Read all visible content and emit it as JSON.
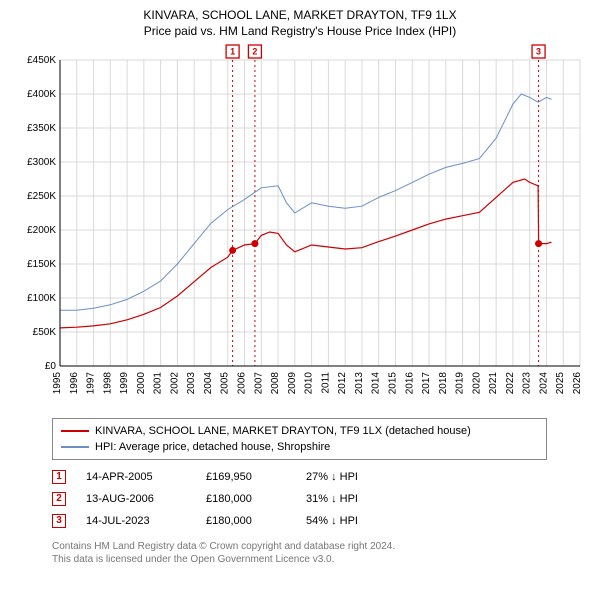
{
  "title": {
    "line1": "KINVARA, SCHOOL LANE, MARKET DRAYTON, TF9 1LX",
    "line2": "Price paid vs. HM Land Registry's House Price Index (HPI)"
  },
  "chart": {
    "type": "line",
    "background_color": "#ffffff",
    "grid_color": "#d9d9d9",
    "axis_color": "#000000",
    "x": {
      "min": 1995,
      "max": 2026,
      "ticks": [
        1995,
        1996,
        1997,
        1998,
        1999,
        2000,
        2001,
        2002,
        2003,
        2004,
        2005,
        2006,
        2007,
        2008,
        2009,
        2010,
        2011,
        2012,
        2013,
        2014,
        2015,
        2016,
        2017,
        2018,
        2019,
        2020,
        2021,
        2022,
        2023,
        2024,
        2025,
        2026
      ],
      "tick_labels": [
        "1995",
        "1996",
        "1997",
        "1998",
        "1999",
        "2000",
        "2001",
        "2002",
        "2003",
        "2004",
        "2005",
        "2006",
        "2007",
        "2008",
        "2009",
        "2010",
        "2011",
        "2012",
        "2013",
        "2014",
        "2015",
        "2016",
        "2017",
        "2018",
        "2019",
        "2020",
        "2021",
        "2022",
        "2023",
        "2024",
        "2025",
        "2026"
      ],
      "label_fontsize": 10,
      "label_rotation": -90
    },
    "y": {
      "min": 0,
      "max": 450000,
      "ticks": [
        0,
        50000,
        100000,
        150000,
        200000,
        250000,
        300000,
        350000,
        400000,
        450000
      ],
      "tick_labels": [
        "£0",
        "£50K",
        "£100K",
        "£150K",
        "£200K",
        "£250K",
        "£300K",
        "£350K",
        "£400K",
        "£450K"
      ],
      "label_fontsize": 10
    },
    "series": [
      {
        "name": "hpi",
        "label": "HPI: Average price, detached house, Shropshire",
        "color": "#6a8fc7",
        "line_width": 1,
        "points": [
          [
            1995.0,
            82000
          ],
          [
            1996.0,
            82000
          ],
          [
            1997.0,
            85000
          ],
          [
            1998.0,
            90000
          ],
          [
            1999.0,
            98000
          ],
          [
            2000.0,
            110000
          ],
          [
            2001.0,
            125000
          ],
          [
            2002.0,
            150000
          ],
          [
            2003.0,
            180000
          ],
          [
            2004.0,
            210000
          ],
          [
            2005.0,
            230000
          ],
          [
            2006.0,
            245000
          ],
          [
            2007.0,
            262000
          ],
          [
            2008.0,
            265000
          ],
          [
            2008.5,
            240000
          ],
          [
            2009.0,
            225000
          ],
          [
            2010.0,
            240000
          ],
          [
            2011.0,
            235000
          ],
          [
            2012.0,
            232000
          ],
          [
            2013.0,
            235000
          ],
          [
            2014.0,
            248000
          ],
          [
            2015.0,
            258000
          ],
          [
            2016.0,
            270000
          ],
          [
            2017.0,
            282000
          ],
          [
            2018.0,
            292000
          ],
          [
            2019.0,
            298000
          ],
          [
            2020.0,
            305000
          ],
          [
            2021.0,
            335000
          ],
          [
            2022.0,
            385000
          ],
          [
            2022.5,
            400000
          ],
          [
            2023.0,
            395000
          ],
          [
            2023.5,
            388000
          ],
          [
            2024.0,
            395000
          ],
          [
            2024.3,
            392000
          ]
        ]
      },
      {
        "name": "property",
        "label": "KINVARA, SCHOOL LANE, MARKET DRAYTON, TF9 1LX (detached house)",
        "color": "#cc0000",
        "line_width": 1.2,
        "points": [
          [
            1995.0,
            56000
          ],
          [
            1996.0,
            57000
          ],
          [
            1997.0,
            59000
          ],
          [
            1998.0,
            62000
          ],
          [
            1999.0,
            68000
          ],
          [
            2000.0,
            76000
          ],
          [
            2001.0,
            86000
          ],
          [
            2002.0,
            103000
          ],
          [
            2003.0,
            124000
          ],
          [
            2004.0,
            145000
          ],
          [
            2005.0,
            160000
          ],
          [
            2005.29,
            170000
          ],
          [
            2006.0,
            178000
          ],
          [
            2006.62,
            180000
          ],
          [
            2007.0,
            192000
          ],
          [
            2007.5,
            197000
          ],
          [
            2008.0,
            195000
          ],
          [
            2008.5,
            178000
          ],
          [
            2009.0,
            168000
          ],
          [
            2010.0,
            178000
          ],
          [
            2011.0,
            175000
          ],
          [
            2012.0,
            172000
          ],
          [
            2013.0,
            174000
          ],
          [
            2014.0,
            183000
          ],
          [
            2015.0,
            191000
          ],
          [
            2016.0,
            200000
          ],
          [
            2017.0,
            209000
          ],
          [
            2018.0,
            216000
          ],
          [
            2019.0,
            221000
          ],
          [
            2020.0,
            226000
          ],
          [
            2021.0,
            248000
          ],
          [
            2022.0,
            270000
          ],
          [
            2022.7,
            275000
          ],
          [
            2023.0,
            270000
          ],
          [
            2023.5,
            265000
          ],
          [
            2023.53,
            180000
          ],
          [
            2024.0,
            180000
          ],
          [
            2024.3,
            182000
          ]
        ]
      }
    ],
    "sale_markers": [
      {
        "num": "1",
        "x": 2005.29,
        "y": 169950,
        "line_color": "#cc0000"
      },
      {
        "num": "2",
        "x": 2006.62,
        "y": 180000,
        "line_color": "#cc0000"
      },
      {
        "num": "3",
        "x": 2023.53,
        "y": 180000,
        "line_color": "#cc0000"
      }
    ],
    "marker_dash": "2,3",
    "marker_box_size": 13
  },
  "legend": {
    "items": [
      {
        "color": "#cc0000",
        "label": "KINVARA, SCHOOL LANE, MARKET DRAYTON, TF9 1LX (detached house)"
      },
      {
        "color": "#6a8fc7",
        "label": "HPI: Average price, detached house, Shropshire"
      }
    ]
  },
  "sales_table": {
    "rows": [
      {
        "num": "1",
        "date": "14-APR-2005",
        "price": "£169,950",
        "diff": "27% ↓ HPI"
      },
      {
        "num": "2",
        "date": "13-AUG-2006",
        "price": "£180,000",
        "diff": "31% ↓ HPI"
      },
      {
        "num": "3",
        "date": "14-JUL-2023",
        "price": "£180,000",
        "diff": "54% ↓ HPI"
      }
    ]
  },
  "footnote": {
    "line1": "Contains HM Land Registry data © Crown copyright and database right 2024.",
    "line2": "This data is licensed under the Open Government Licence v3.0."
  }
}
